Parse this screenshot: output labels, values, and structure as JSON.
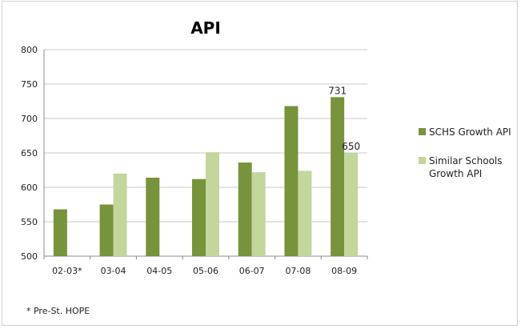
{
  "chart_data": {
    "type": "bar",
    "title": "API",
    "categories": [
      "02-03*",
      "03-04",
      "04-05",
      "05-06",
      "06-07",
      "07-08",
      "08-09"
    ],
    "series": [
      {
        "name": "SCHS Growth API",
        "color": "#77933c",
        "values": [
          568,
          575,
          614,
          612,
          636,
          718,
          731
        ]
      },
      {
        "name": "Similar Schools Growth API",
        "color": "#c3d69b",
        "values": [
          null,
          620,
          null,
          651,
          622,
          624,
          650
        ]
      }
    ],
    "data_labels": [
      {
        "series": 0,
        "index": 6,
        "text": "731"
      },
      {
        "series": 1,
        "index": 6,
        "text": "650"
      }
    ],
    "ylim": [
      500,
      800
    ],
    "yticks": [
      500,
      550,
      600,
      650,
      700,
      750,
      800
    ],
    "grid": true,
    "legend_position": "right",
    "legend_lines": [
      [
        "SCHS Growth API"
      ],
      [
        "Similar Schools",
        "Growth API"
      ]
    ],
    "footnote": "* Pre-St. HOPE"
  }
}
